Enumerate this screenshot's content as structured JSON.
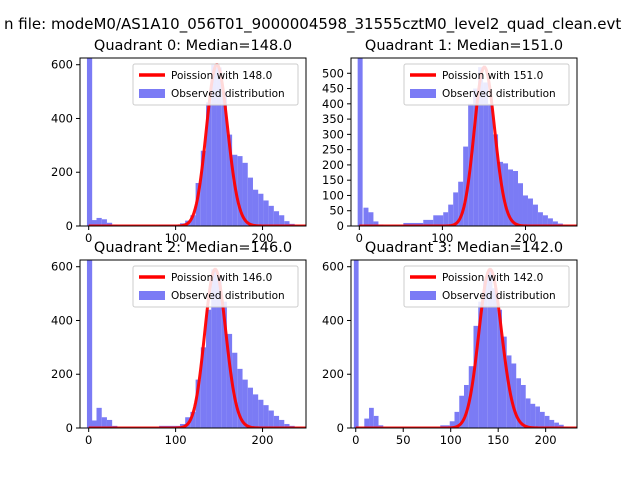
{
  "figure": {
    "suptitle": "n file: modeM0/AS1A10_056T01_9000004598_31555cztM0_level2_quad_clean.evt"
  },
  "colors": {
    "hist": "#7b7bf5",
    "poisson": "#ff0000",
    "axis": "#000000"
  },
  "chart_data": [
    {
      "type": "bar",
      "quadrant": 0,
      "title": "Quadrant 0: Median=148.0",
      "legend": [
        "Poission with 148.0",
        "Observed distribution"
      ],
      "legend_position": "top-right",
      "xlim": [
        -10,
        250
      ],
      "ylim": [
        0,
        625
      ],
      "xticks": [
        0,
        100,
        200
      ],
      "yticks": [
        0,
        200,
        400,
        600
      ],
      "poisson_mean": 148.0,
      "poisson_peak": 600,
      "hist_bins": [
        [
          -2,
          4,
          625
        ],
        [
          3,
          9,
          22
        ],
        [
          9,
          15,
          30
        ],
        [
          15,
          21,
          25
        ],
        [
          21,
          27,
          12
        ],
        [
          27,
          33,
          5
        ],
        [
          33,
          81,
          1
        ],
        [
          81,
          105,
          5
        ],
        [
          105,
          111,
          10
        ],
        [
          111,
          117,
          20
        ],
        [
          117,
          123,
          40
        ],
        [
          123,
          129,
          160
        ],
        [
          129,
          135,
          280
        ],
        [
          135,
          141,
          460
        ],
        [
          141,
          147,
          600
        ],
        [
          147,
          153,
          590
        ],
        [
          153,
          159,
          500
        ],
        [
          159,
          165,
          340
        ],
        [
          165,
          171,
          265
        ],
        [
          171,
          177,
          260
        ],
        [
          177,
          183,
          235
        ],
        [
          183,
          189,
          180
        ],
        [
          189,
          195,
          135
        ],
        [
          195,
          201,
          120
        ],
        [
          201,
          207,
          95
        ],
        [
          207,
          213,
          75
        ],
        [
          213,
          219,
          55
        ],
        [
          219,
          225,
          40
        ],
        [
          225,
          231,
          18
        ],
        [
          231,
          237,
          8
        ],
        [
          237,
          243,
          3
        ]
      ]
    },
    {
      "type": "bar",
      "quadrant": 1,
      "title": "Quadrant 1: Median=151.0",
      "legend": [
        "Poission with 151.0",
        "Observed distribution"
      ],
      "legend_position": "top-right",
      "xlim": [
        -10,
        262
      ],
      "ylim": [
        0,
        550
      ],
      "xticks": [
        0,
        100,
        200
      ],
      "yticks": [
        0,
        50,
        100,
        150,
        200,
        250,
        300,
        350,
        400,
        450,
        500
      ],
      "poisson_mean": 151.0,
      "poisson_peak": 520,
      "hist_bins": [
        [
          -2,
          4,
          550
        ],
        [
          5,
          11,
          60
        ],
        [
          11,
          17,
          45
        ],
        [
          17,
          23,
          15
        ],
        [
          23,
          29,
          5
        ],
        [
          29,
          53,
          1
        ],
        [
          53,
          77,
          10
        ],
        [
          77,
          89,
          20
        ],
        [
          89,
          101,
          35
        ],
        [
          101,
          107,
          45
        ],
        [
          107,
          113,
          70
        ],
        [
          113,
          119,
          110
        ],
        [
          119,
          125,
          145
        ],
        [
          125,
          131,
          260
        ],
        [
          131,
          137,
          400
        ],
        [
          137,
          143,
          450
        ],
        [
          143,
          149,
          520
        ],
        [
          149,
          155,
          470
        ],
        [
          155,
          161,
          400
        ],
        [
          161,
          167,
          300
        ],
        [
          167,
          173,
          210
        ],
        [
          173,
          179,
          205
        ],
        [
          179,
          185,
          185
        ],
        [
          185,
          191,
          180
        ],
        [
          191,
          197,
          140
        ],
        [
          197,
          203,
          100
        ],
        [
          203,
          209,
          90
        ],
        [
          209,
          215,
          70
        ],
        [
          215,
          221,
          45
        ],
        [
          221,
          227,
          35
        ],
        [
          227,
          233,
          25
        ],
        [
          233,
          239,
          15
        ],
        [
          239,
          245,
          8
        ],
        [
          245,
          251,
          3
        ]
      ]
    },
    {
      "type": "bar",
      "quadrant": 2,
      "title": "Quadrant 2: Median=146.0",
      "legend": [
        "Poission with 146.0",
        "Observed distribution"
      ],
      "legend_position": "top-right",
      "xlim": [
        -10,
        250
      ],
      "ylim": [
        0,
        625
      ],
      "xticks": [
        0,
        100,
        200
      ],
      "yticks": [
        0,
        200,
        400,
        600
      ],
      "poisson_mean": 146.0,
      "poisson_peak": 590,
      "hist_bins": [
        [
          -2,
          4,
          625
        ],
        [
          3,
          9,
          28
        ],
        [
          9,
          15,
          75
        ],
        [
          15,
          21,
          40
        ],
        [
          21,
          27,
          30
        ],
        [
          27,
          33,
          8
        ],
        [
          33,
          81,
          2
        ],
        [
          81,
          105,
          8
        ],
        [
          105,
          111,
          15
        ],
        [
          111,
          117,
          40
        ],
        [
          117,
          123,
          60
        ],
        [
          123,
          129,
          180
        ],
        [
          129,
          135,
          300
        ],
        [
          135,
          141,
          440
        ],
        [
          141,
          147,
          590
        ],
        [
          147,
          153,
          560
        ],
        [
          153,
          159,
          470
        ],
        [
          159,
          165,
          350
        ],
        [
          165,
          171,
          280
        ],
        [
          171,
          177,
          220
        ],
        [
          177,
          183,
          180
        ],
        [
          183,
          189,
          150
        ],
        [
          189,
          195,
          125
        ],
        [
          195,
          201,
          105
        ],
        [
          201,
          207,
          85
        ],
        [
          207,
          213,
          65
        ],
        [
          213,
          219,
          45
        ],
        [
          219,
          225,
          30
        ],
        [
          225,
          231,
          15
        ],
        [
          231,
          237,
          8
        ],
        [
          237,
          243,
          3
        ]
      ]
    },
    {
      "type": "bar",
      "quadrant": 3,
      "title": "Quadrant 3: Median=142.0",
      "legend": [
        "Poission with 142.0",
        "Observed distribution"
      ],
      "legend_position": "top-right",
      "xlim": [
        -5,
        233
      ],
      "ylim": [
        0,
        625
      ],
      "xticks": [
        0,
        50,
        100,
        150,
        200
      ],
      "yticks": [
        0,
        200,
        400,
        600
      ],
      "poisson_mean": 142.0,
      "poisson_peak": 590,
      "hist_bins": [
        [
          -2,
          3,
          625
        ],
        [
          9,
          14,
          35
        ],
        [
          14,
          19,
          75
        ],
        [
          19,
          24,
          45
        ],
        [
          24,
          29,
          10
        ],
        [
          29,
          89,
          2
        ],
        [
          89,
          99,
          10
        ],
        [
          99,
          104,
          25
        ],
        [
          104,
          109,
          60
        ],
        [
          109,
          114,
          120
        ],
        [
          114,
          119,
          160
        ],
        [
          119,
          124,
          230
        ],
        [
          124,
          129,
          380
        ],
        [
          129,
          134,
          470
        ],
        [
          134,
          139,
          550
        ],
        [
          139,
          144,
          590
        ],
        [
          144,
          149,
          520
        ],
        [
          149,
          154,
          440
        ],
        [
          154,
          159,
          340
        ],
        [
          159,
          164,
          270
        ],
        [
          164,
          169,
          240
        ],
        [
          169,
          174,
          185
        ],
        [
          174,
          179,
          160
        ],
        [
          179,
          184,
          110
        ],
        [
          184,
          189,
          90
        ],
        [
          189,
          194,
          80
        ],
        [
          194,
          199,
          60
        ],
        [
          199,
          204,
          45
        ],
        [
          204,
          209,
          30
        ],
        [
          209,
          214,
          20
        ],
        [
          214,
          219,
          12
        ],
        [
          219,
          224,
          5
        ]
      ]
    }
  ]
}
